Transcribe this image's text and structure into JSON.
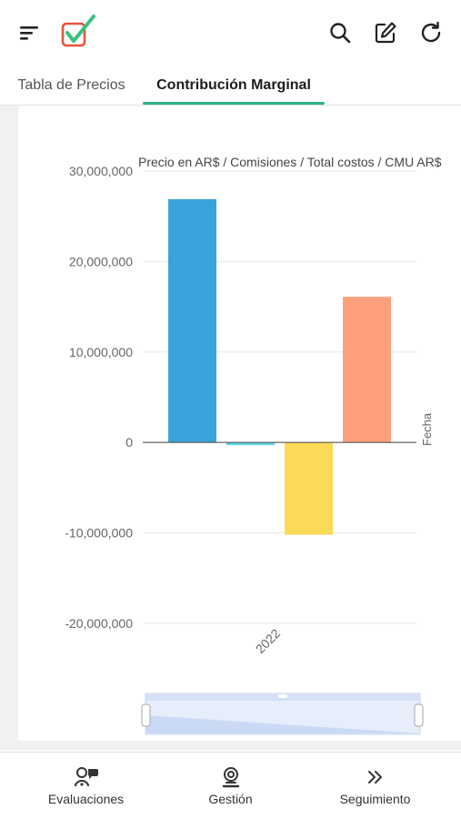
{
  "header": {
    "menu_icon": "sort-menu-icon",
    "logo_icon": "checkbox-logo-icon",
    "actions": [
      "search-icon",
      "edit-icon",
      "refresh-icon"
    ]
  },
  "tabs": [
    {
      "label": "Tabla de Precios",
      "active": false
    },
    {
      "label": "Contribución Marginal",
      "active": true
    }
  ],
  "chart_data": {
    "type": "bar",
    "title": "Precio en AR$ / Comisiones / Total costos / CMU AR$",
    "categories": [
      "2022"
    ],
    "xlabel": "Fecha",
    "series": [
      {
        "name": "Precio en AR$",
        "values": [
          26900000
        ],
        "color": "#3ba3dc"
      },
      {
        "name": "Comisiones",
        "values": [
          -300000
        ],
        "color": "#5bd6e8"
      },
      {
        "name": "Total costos",
        "values": [
          -10200000
        ],
        "color": "#fcd957"
      },
      {
        "name": "CMU AR$",
        "values": [
          16100000
        ],
        "color": "#fe9f7b"
      }
    ],
    "ylim": [
      -20000000,
      30000000
    ],
    "yticks": [
      30000000,
      20000000,
      10000000,
      0,
      -10000000,
      -20000000
    ],
    "ytick_labels": [
      "30,000,000",
      "20,000,000",
      "10,000,000",
      "0",
      "-10,000,000",
      "-20,000,000"
    ],
    "grid": true,
    "legend": "none",
    "zoom_slider": true
  },
  "bottom_nav": [
    {
      "label": "Evaluaciones",
      "icon": "evaluations-icon"
    },
    {
      "label": "Gestión",
      "icon": "management-icon"
    },
    {
      "label": "Seguimiento",
      "icon": "double-chevron-right-icon"
    }
  ],
  "colors": {
    "accent": "#2bb383",
    "logo_box": "#e8543e",
    "logo_check": "#3bbf7e"
  }
}
